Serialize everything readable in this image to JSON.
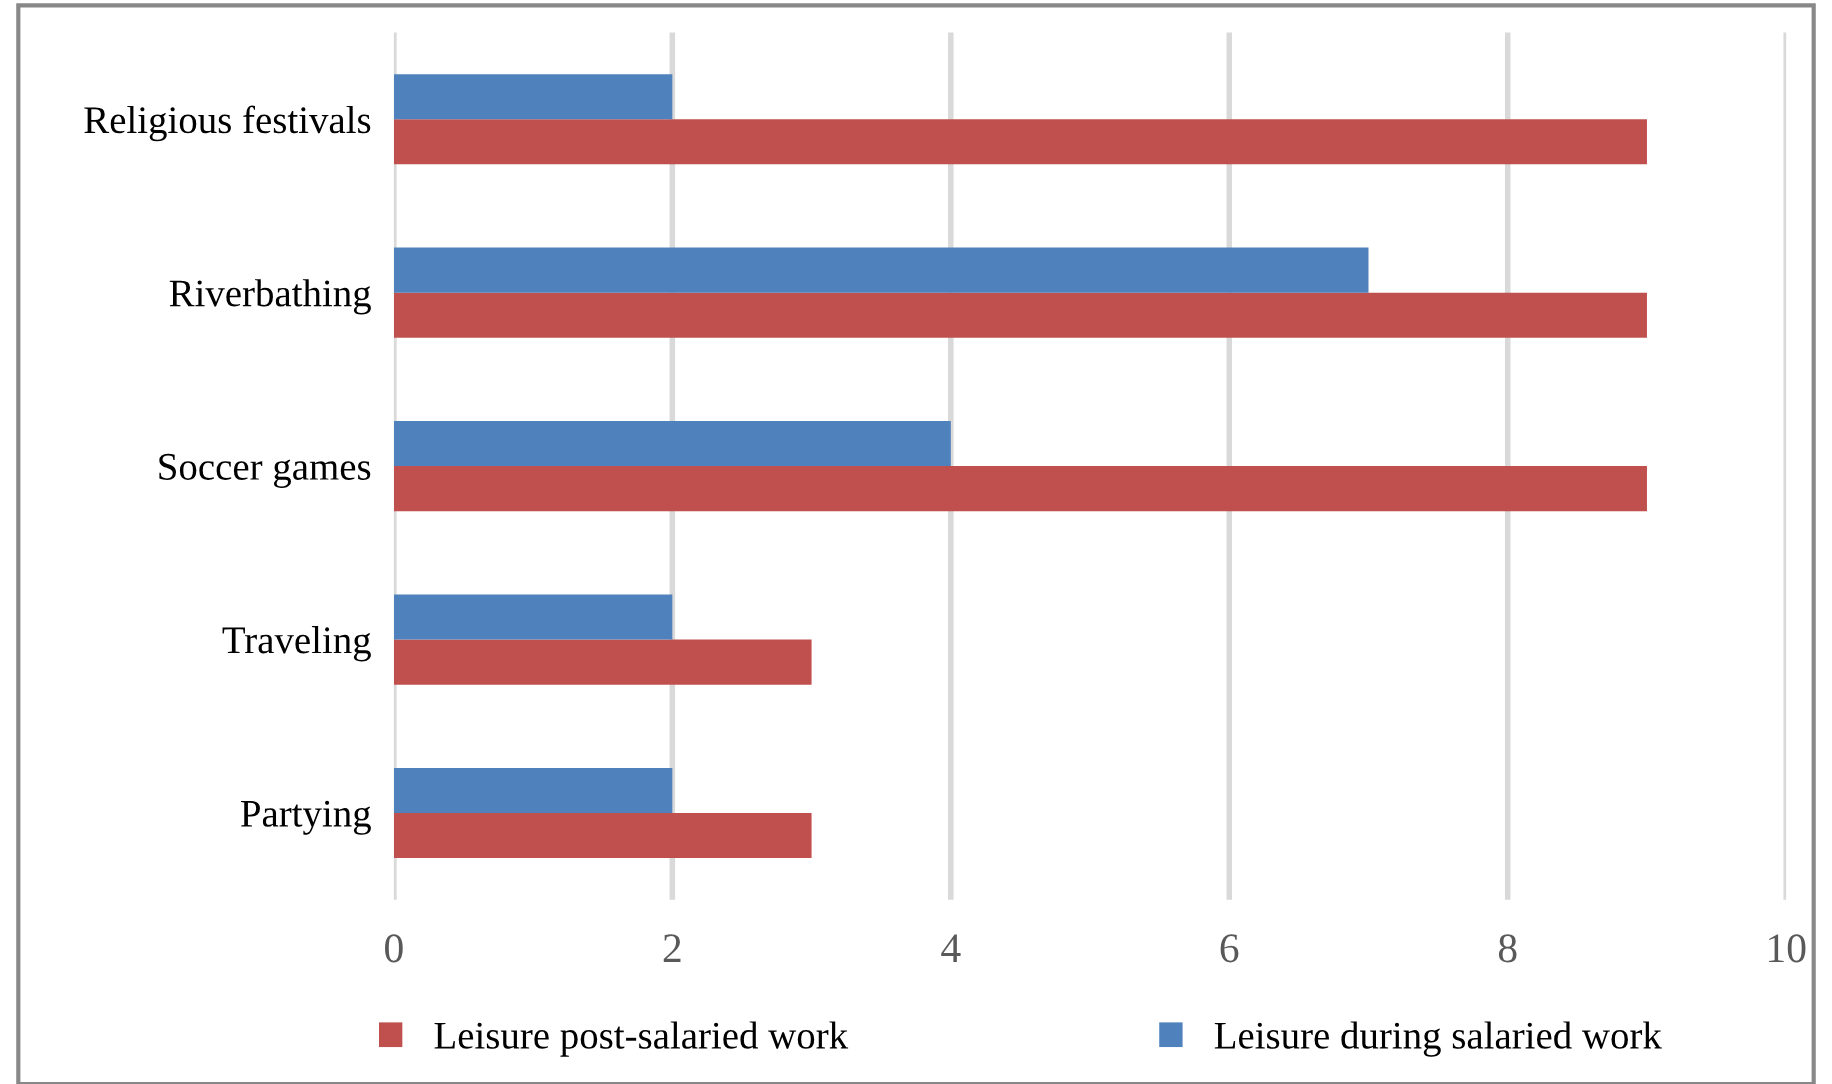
{
  "chart_data": {
    "type": "bar",
    "orientation": "horizontal",
    "categories": [
      "Religious festivals",
      "Riverbathing",
      "Soccer games",
      "Traveling",
      "Partying"
    ],
    "series": [
      {
        "name": "Leisure post-salaried work",
        "color": "#c0504d",
        "values": [
          9,
          9,
          9,
          3,
          3
        ]
      },
      {
        "name": "Leisure during salaried work",
        "color": "#4f81bd",
        "values": [
          2,
          7,
          4,
          2,
          2
        ]
      }
    ],
    "xlim": [
      0,
      10
    ],
    "xticks": [
      0,
      2,
      4,
      6,
      8,
      10
    ],
    "grid": "x",
    "legend": "bottom"
  }
}
